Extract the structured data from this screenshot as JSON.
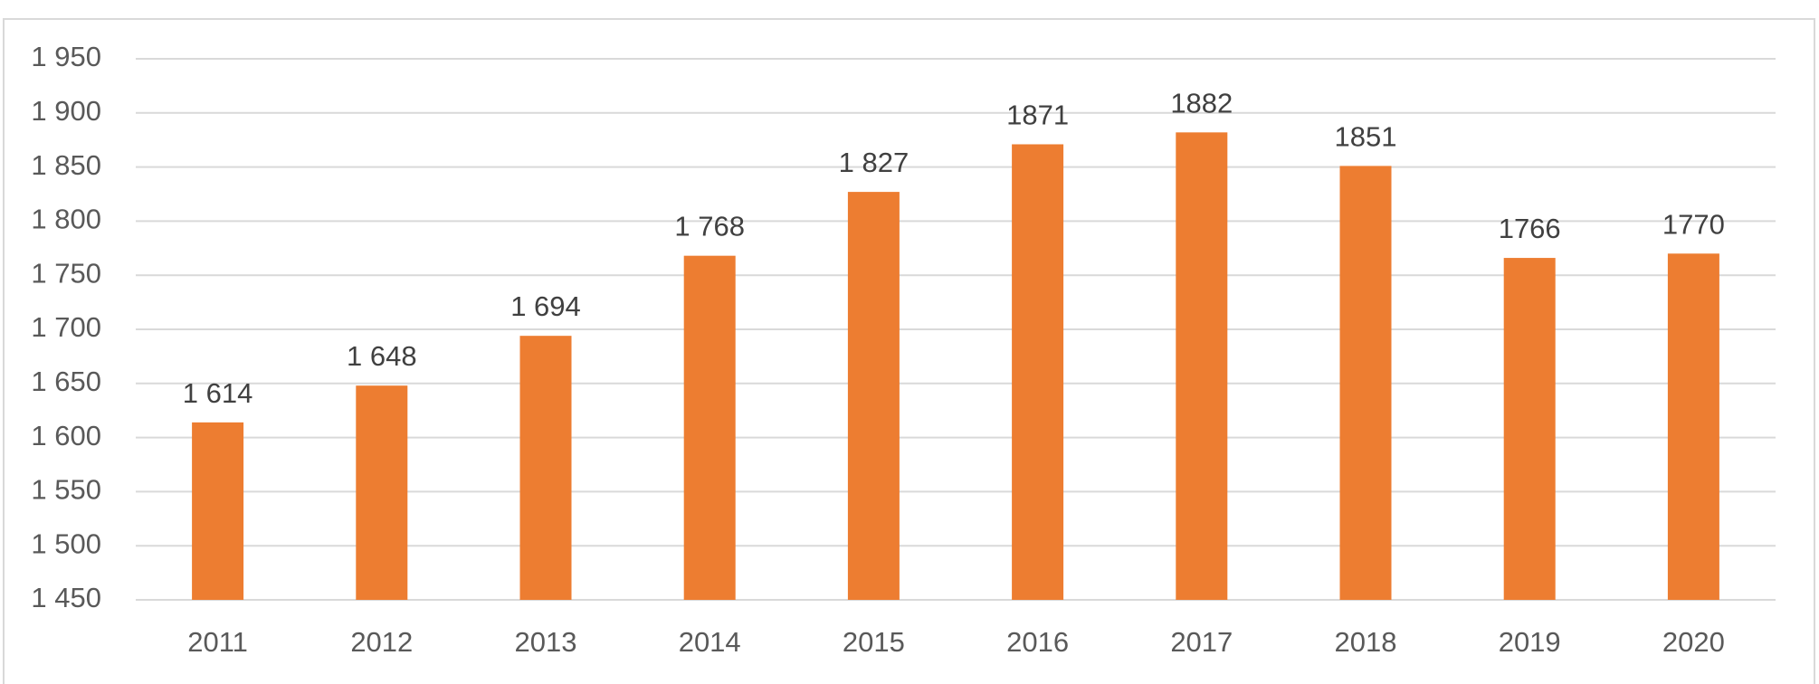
{
  "chart_data": {
    "type": "bar",
    "title": "",
    "xlabel": "",
    "ylabel": "",
    "categories": [
      "2011",
      "2012",
      "2013",
      "2014",
      "2015",
      "2016",
      "2017",
      "2018",
      "2019",
      "2020"
    ],
    "values": [
      1614,
      1648,
      1694,
      1768,
      1827,
      1871,
      1882,
      1851,
      1766,
      1770
    ],
    "data_labels": [
      "1 614",
      "1 648",
      "1 694",
      "1 768",
      "1 827",
      "1871",
      "1882",
      "1851",
      "1766",
      "1770"
    ],
    "ylim": [
      1450,
      1950
    ],
    "y_ticks": [
      1450,
      1500,
      1550,
      1600,
      1650,
      1700,
      1750,
      1800,
      1850,
      1900,
      1950
    ],
    "y_tick_labels": [
      "1 450",
      "1 500",
      "1 550",
      "1 600",
      "1 650",
      "1 700",
      "1 750",
      "1 800",
      "1 850",
      "1 900",
      "1 950"
    ],
    "grid": true,
    "legend": "none",
    "bar_color": "#ed7d31"
  }
}
